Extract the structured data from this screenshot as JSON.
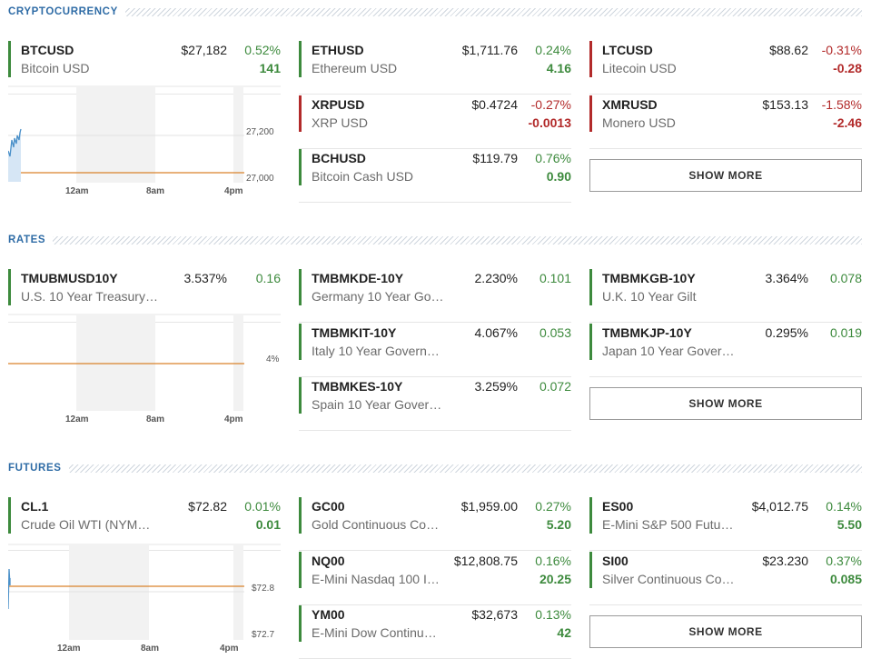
{
  "sections": {
    "crypto": {
      "title": "CRYPTOCURRENCY",
      "show_more": "SHOW MORE",
      "cards": [
        {
          "symbol": "BTCUSD",
          "name": "Bitcoin USD",
          "price": "$27,182",
          "pct": "0.52%",
          "chg": "141",
          "dir": "up"
        },
        {
          "symbol": "ETHUSD",
          "name": "Ethereum USD",
          "price": "$1,711.76",
          "pct": "0.24%",
          "chg": "4.16",
          "dir": "up"
        },
        {
          "symbol": "LTCUSD",
          "name": "Litecoin USD",
          "price": "$88.62",
          "pct": "-0.31%",
          "chg": "-0.28",
          "dir": "down"
        },
        {
          "symbol": "XRPUSD",
          "name": "XRP USD",
          "price": "$0.4724",
          "pct": "-0.27%",
          "chg": "-0.0013",
          "dir": "down"
        },
        {
          "symbol": "XMRUSD",
          "name": "Monero USD",
          "price": "$153.13",
          "pct": "-1.58%",
          "chg": "-2.46",
          "dir": "down"
        },
        {
          "symbol": "BCHUSD",
          "name": "Bitcoin Cash USD",
          "price": "$119.79",
          "pct": "0.76%",
          "chg": "0.90",
          "dir": "up"
        }
      ],
      "chart": {
        "y_labels": [
          "27,200",
          "27,000"
        ],
        "x_labels": [
          "12am",
          "8am",
          "4pm"
        ]
      }
    },
    "rates": {
      "title": "RATES",
      "show_more": "SHOW MORE",
      "cards": [
        {
          "symbol": "TMUBMUSD10Y",
          "name": "U.S. 10 Year Treasury…",
          "price": "3.537%",
          "pct": "",
          "chg": "0.16",
          "dir": "up"
        },
        {
          "symbol": "TMBMKDE-10Y",
          "name": "Germany 10 Year Go…",
          "price": "2.230%",
          "pct": "",
          "chg": "0.101",
          "dir": "up"
        },
        {
          "symbol": "TMBMKGB-10Y",
          "name": "U.K. 10 Year Gilt",
          "price": "3.364%",
          "pct": "",
          "chg": "0.078",
          "dir": "up"
        },
        {
          "symbol": "TMBMKIT-10Y",
          "name": "Italy 10 Year Govern…",
          "price": "4.067%",
          "pct": "",
          "chg": "0.053",
          "dir": "up"
        },
        {
          "symbol": "TMBMKJP-10Y",
          "name": "Japan 10 Year Gover…",
          "price": "0.295%",
          "pct": "",
          "chg": "0.019",
          "dir": "up"
        },
        {
          "symbol": "TMBMKES-10Y",
          "name": "Spain 10 Year Gover…",
          "price": "3.259%",
          "pct": "",
          "chg": "0.072",
          "dir": "up"
        }
      ],
      "chart": {
        "y_labels": [
          "4%"
        ],
        "x_labels": [
          "12am",
          "8am",
          "4pm"
        ]
      }
    },
    "futures": {
      "title": "FUTURES",
      "show_more": "SHOW MORE",
      "cards": [
        {
          "symbol": "CL.1",
          "name": "Crude Oil WTI (NYM…",
          "price": "$72.82",
          "pct": "0.01%",
          "chg": "0.01",
          "dir": "up"
        },
        {
          "symbol": "GC00",
          "name": "Gold Continuous Co…",
          "price": "$1,959.00",
          "pct": "0.27%",
          "chg": "5.20",
          "dir": "up"
        },
        {
          "symbol": "ES00",
          "name": "E-Mini S&P 500 Futu…",
          "price": "$4,012.75",
          "pct": "0.14%",
          "chg": "5.50",
          "dir": "up"
        },
        {
          "symbol": "NQ00",
          "name": "E-Mini Nasdaq 100 I…",
          "price": "$12,808.75",
          "pct": "0.16%",
          "chg": "20.25",
          "dir": "up"
        },
        {
          "symbol": "SI00",
          "name": "Silver Continuous Co…",
          "price": "$23.230",
          "pct": "0.37%",
          "chg": "0.085",
          "dir": "up"
        },
        {
          "symbol": "YM00",
          "name": "E-Mini Dow Continu…",
          "price": "$32,673",
          "pct": "0.13%",
          "chg": "42",
          "dir": "up"
        }
      ],
      "chart": {
        "y_labels": [
          "$72.8",
          "$72.7"
        ],
        "x_labels": [
          "12am",
          "8am",
          "4pm"
        ]
      }
    }
  },
  "colors": {
    "up": "#3d8a3d",
    "down": "#b22a2a",
    "accent": "#2f6ca6",
    "baseline": "#d9822b",
    "line": "#4a90c9"
  }
}
